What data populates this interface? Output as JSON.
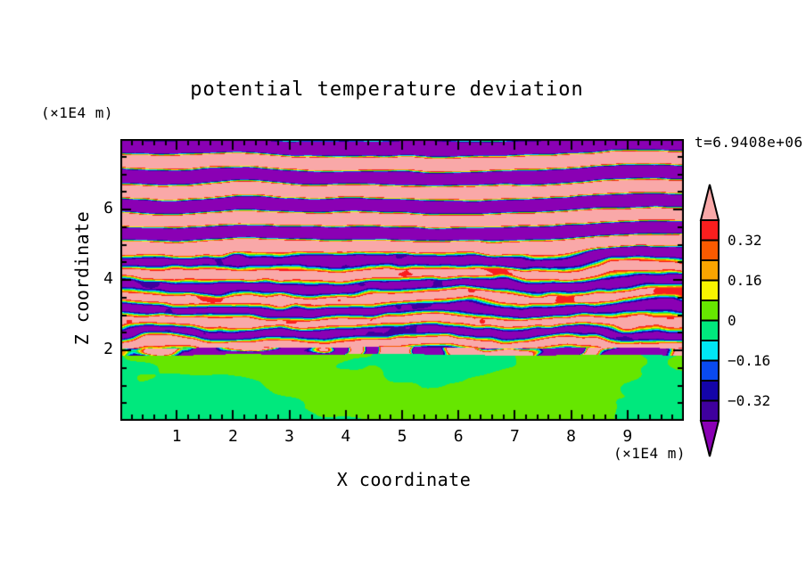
{
  "chart_data": {
    "type": "heatmap",
    "title": "potential temperature deviation",
    "xlabel": "X coordinate",
    "ylabel": "Z coordinate",
    "x_unit_label": "(×1E4 m)",
    "y_unit_label": "(×1E4 m)",
    "time_label": "t=6.9408e+06",
    "xlim": [
      0,
      10
    ],
    "ylim": [
      0,
      8
    ],
    "xticks": [
      "1",
      "2",
      "3",
      "4",
      "5",
      "6",
      "7",
      "8",
      "9"
    ],
    "yticks": [
      "2",
      "4",
      "6"
    ],
    "x_minor_step": 0.2,
    "y_minor_step": 0.5,
    "grid": false,
    "legend_position": "right",
    "colorbar": {
      "orientation": "vertical",
      "tick_labels": [
        "0.32",
        "0.16",
        "0",
        "−0.16",
        "−0.32"
      ],
      "tick_values": [
        0.32,
        0.16,
        0,
        -0.16,
        -0.32
      ],
      "levels": [
        -0.4,
        -0.32,
        -0.24,
        -0.16,
        -0.08,
        0,
        0.08,
        0.16,
        0.24,
        0.32,
        0.4
      ],
      "colors": [
        "#8a00b4",
        "#3f009e",
        "#1404a8",
        "#0a4af0",
        "#00e6f5",
        "#00e87d",
        "#66e600",
        "#f8f500",
        "#f9a400",
        "#fa5a00",
        "#fa1e1e",
        "#f9a8a8"
      ],
      "color_names": [
        "purple (< -0.40)",
        "indigo",
        "navy",
        "blue",
        "cyan",
        "spring-green",
        "chartreuse",
        "yellow",
        "orange",
        "orange-red",
        "red",
        "pink (> 0.40)"
      ]
    },
    "field": {
      "description": "Vertical x-z cross-section of potential temperature deviation. Below z≈2(×1E4 m): near-zero values (|v|<0.08) forming smooth green blobs (spring-green negative, chartreuse positive). A thin mixed interface stripe sits at z≈2 with alternating strong +/- segments (red/pink vs navy/blue). Above z≈2: stacked gravity-wave layers alternating v>0.40 (pink) and v<-0.40 (purple) with vertical pair period ≈0.8(×1E4 m); layers are strongly turbulent with full-rainbow filaments for z≈2-4.6 and more coherent, thin-edged bands aloft.",
      "interface_z": 2.0,
      "turbulent_z_range": [
        2.0,
        4.6
      ],
      "stripe_period_z": 0.8,
      "value_range": [
        -0.48,
        0.48
      ],
      "seed": 11
    }
  }
}
